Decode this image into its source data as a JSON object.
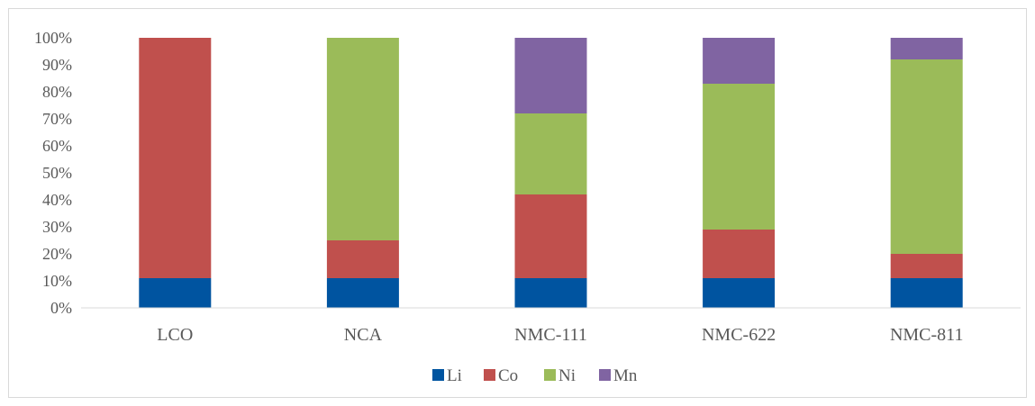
{
  "chart_data": {
    "type": "bar",
    "stacked": true,
    "percent_stacked": true,
    "categories": [
      "LCO",
      "NCA",
      "NMC-111",
      "NMC-622",
      "NMC-811"
    ],
    "series": [
      {
        "name": "Li",
        "color": "#0054a0",
        "values": [
          11,
          11,
          11,
          11,
          11
        ]
      },
      {
        "name": "Co",
        "color": "#c0504d",
        "values": [
          89,
          14,
          31,
          18,
          9
        ]
      },
      {
        "name": "Ni",
        "color": "#9bbb59",
        "values": [
          0,
          75,
          30,
          54,
          72
        ]
      },
      {
        "name": "Mn",
        "color": "#8064a2",
        "values": [
          0,
          0,
          28,
          17,
          8
        ]
      }
    ],
    "y_ticks": [
      "0%",
      "10%",
      "20%",
      "30%",
      "40%",
      "50%",
      "60%",
      "70%",
      "80%",
      "90%",
      "100%"
    ],
    "ylim": [
      0,
      100
    ],
    "title": "",
    "xlabel": "",
    "ylabel": "",
    "grid": false,
    "legend_position": "bottom"
  }
}
